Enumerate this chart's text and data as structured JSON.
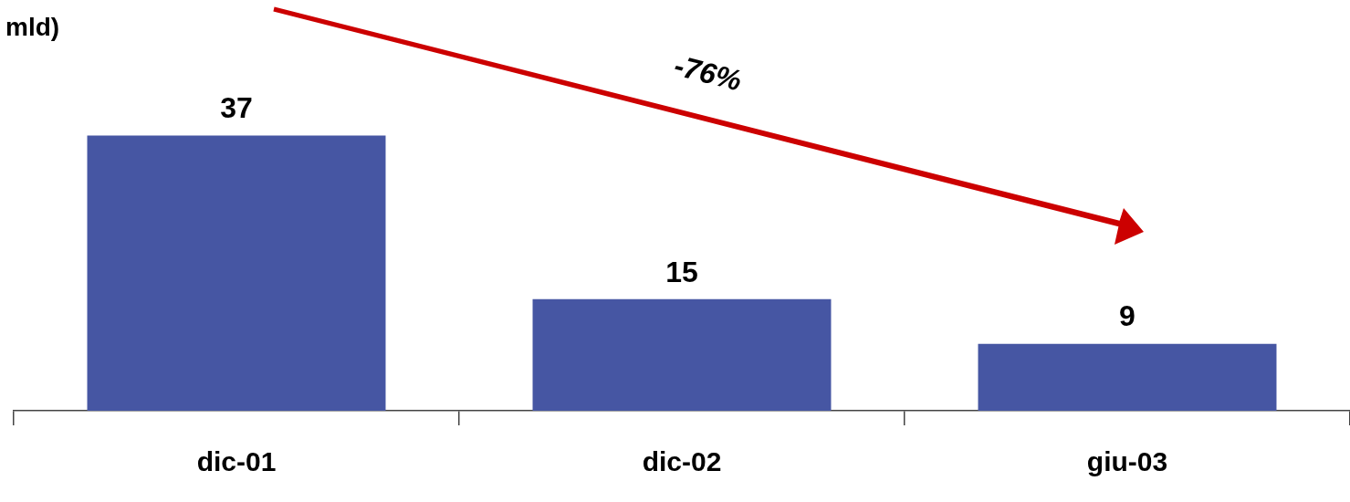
{
  "chart_data": {
    "type": "bar",
    "title": "mld)",
    "categories": [
      "dic-01",
      "dic-02",
      "giu-03"
    ],
    "values": [
      37,
      15,
      9
    ],
    "color": "#4656a3",
    "data_labels": true,
    "grid": false,
    "legend": false,
    "tick_labels": "x",
    "annotations": [
      "-76%"
    ]
  }
}
